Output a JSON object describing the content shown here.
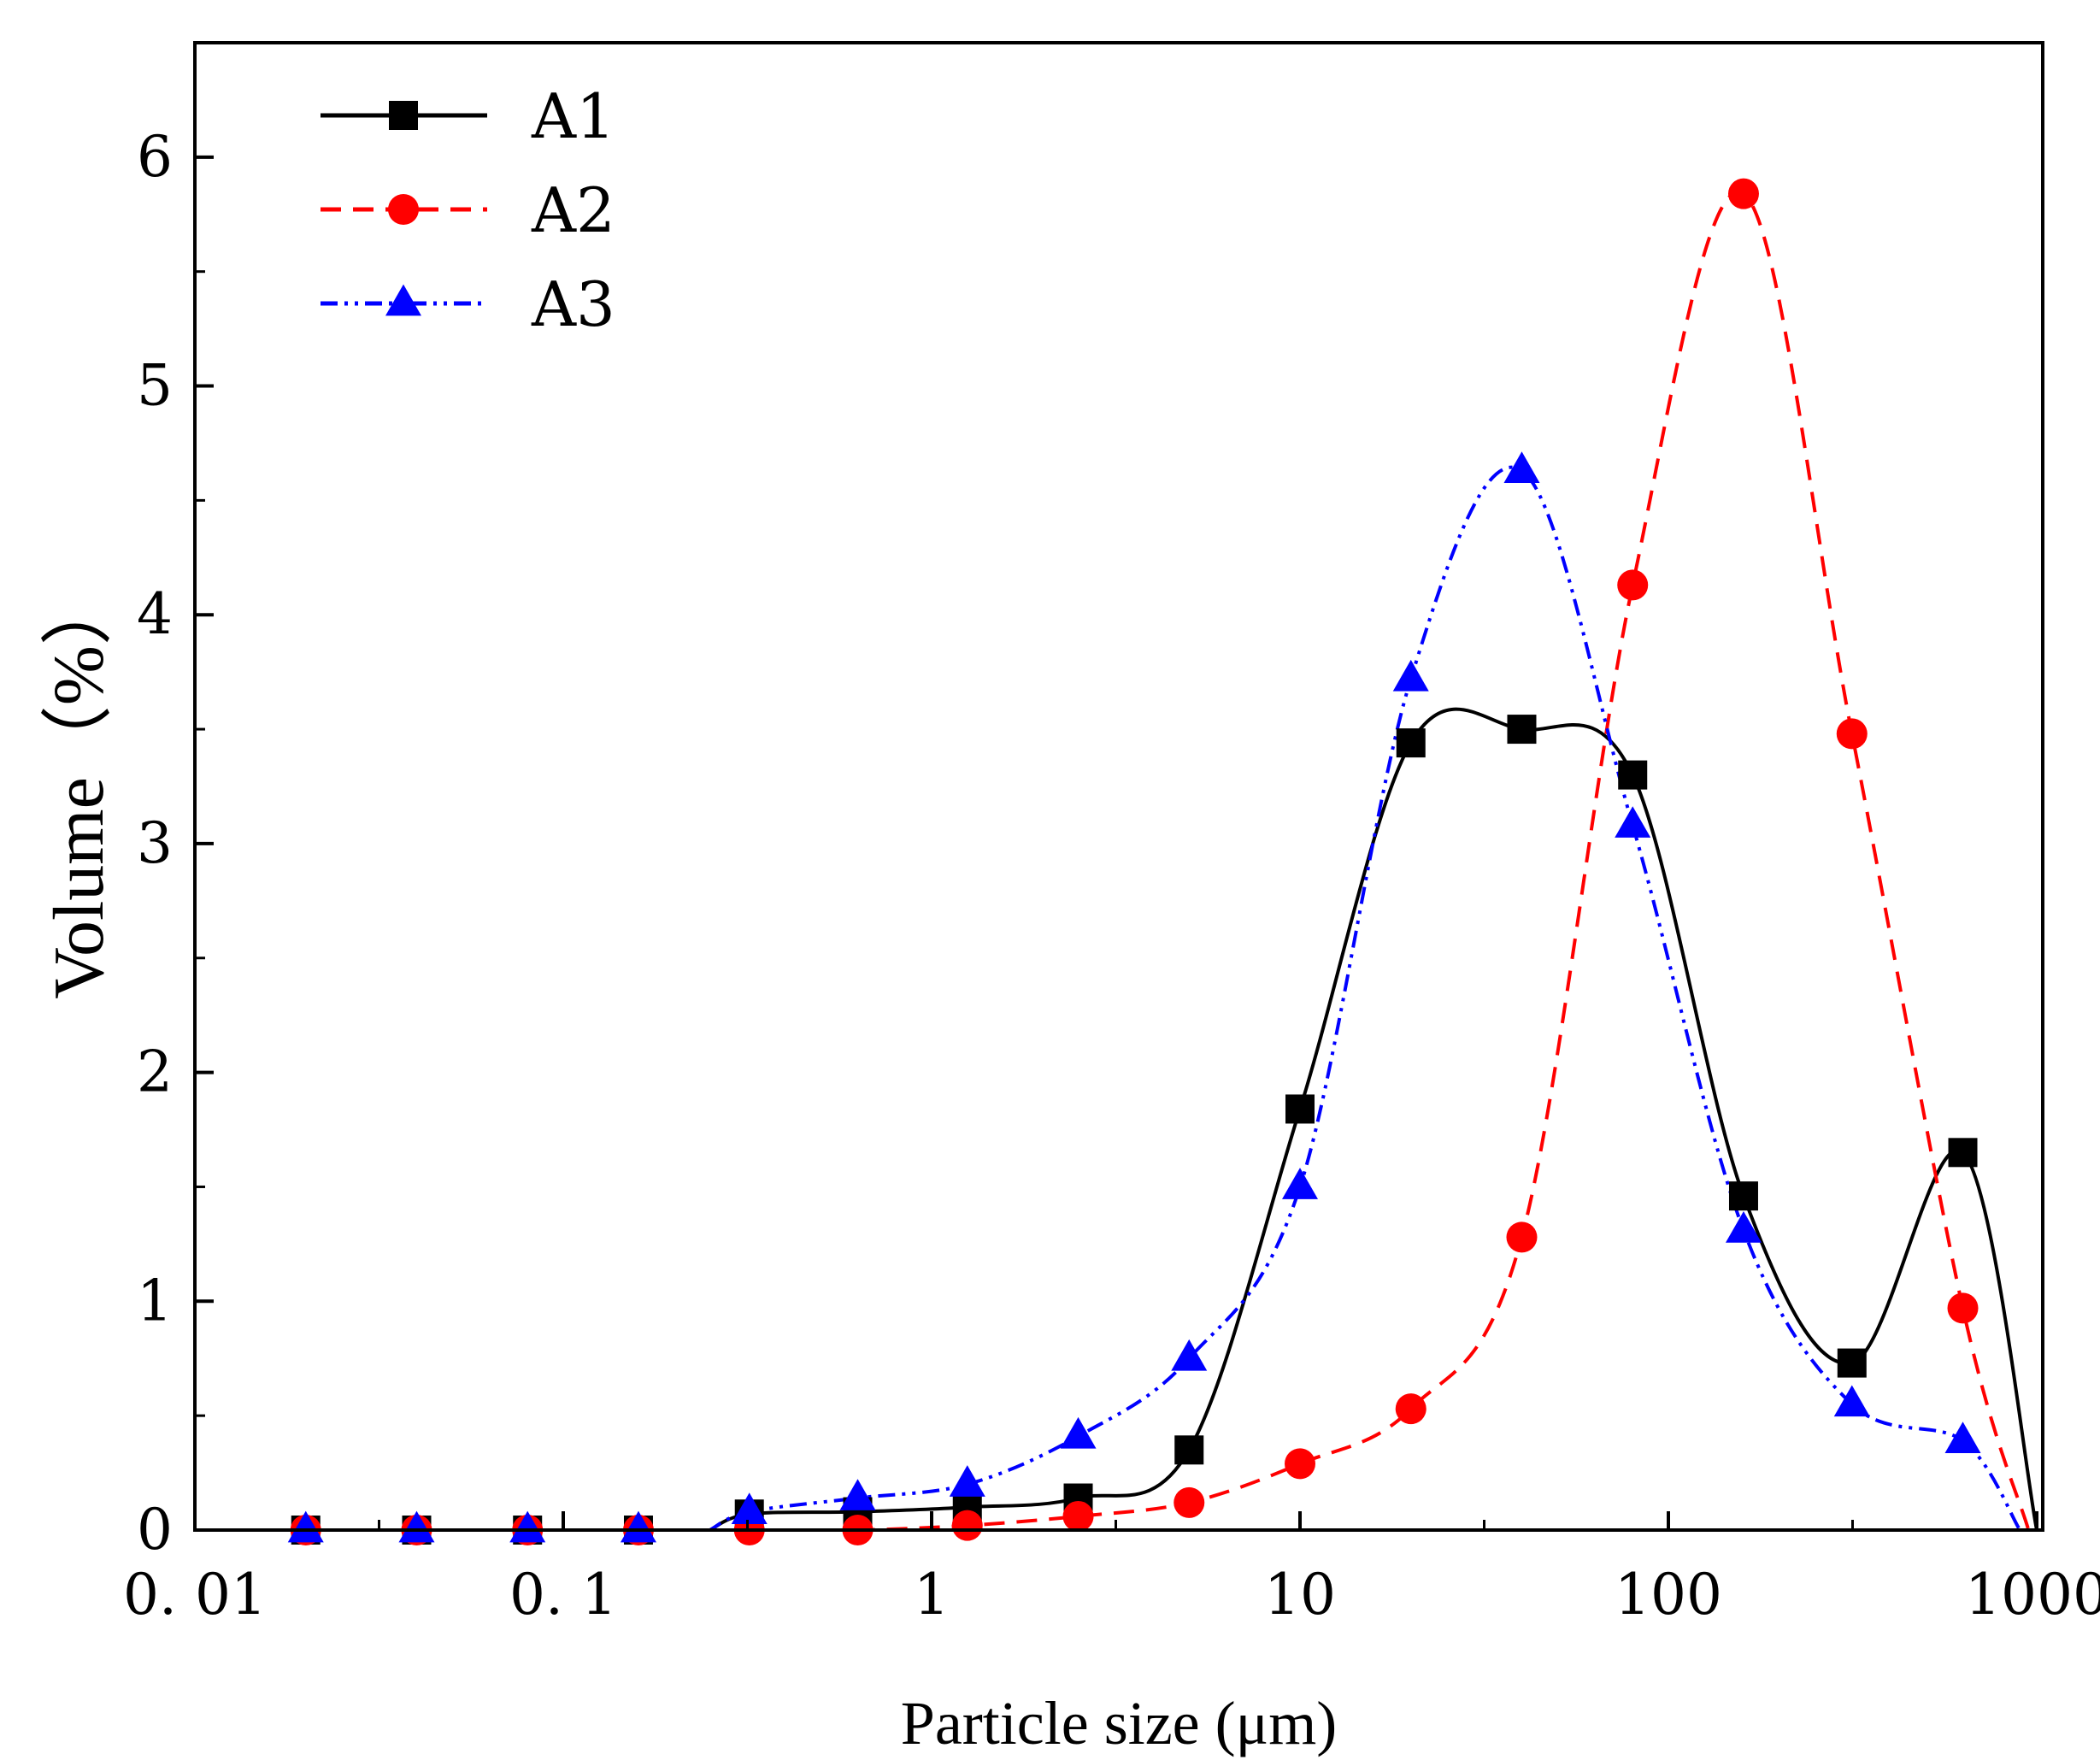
{
  "chart_data": {
    "type": "line",
    "title": "",
    "xlabel": "Particle size (μm)",
    "ylabel": "Volume（%）",
    "x_scale": "log",
    "xlim": [
      0.01,
      1200
    ],
    "ylim": [
      0,
      6.5
    ],
    "x_ticks": [
      {
        "value": 0.01,
        "label": "0. 01"
      },
      {
        "value": 0.1,
        "label": "0. 1"
      },
      {
        "value": 1,
        "label": "1"
      },
      {
        "value": 10,
        "label": "10"
      },
      {
        "value": 100,
        "label": "100"
      },
      {
        "value": 1000,
        "label": "1000"
      }
    ],
    "y_ticks": [
      {
        "value": 0,
        "label": "0"
      },
      {
        "value": 1,
        "label": "1"
      },
      {
        "value": 2,
        "label": "2"
      },
      {
        "value": 3,
        "label": "3"
      },
      {
        "value": 4,
        "label": "4"
      },
      {
        "value": 5,
        "label": "5"
      },
      {
        "value": 6,
        "label": "6"
      }
    ],
    "legend_position": "top-left",
    "series": [
      {
        "name": "A1",
        "color": "#000000",
        "marker": "square",
        "line_style": "solid",
        "x": [
          0.02,
          0.04,
          0.08,
          0.16,
          0.32,
          0.63,
          1.25,
          2.5,
          5,
          10,
          20,
          40,
          80,
          160,
          315,
          630
        ],
        "y": [
          0,
          0,
          0,
          0,
          0.07,
          0.08,
          0.1,
          0.14,
          0.35,
          1.84,
          3.44,
          3.5,
          3.3,
          1.46,
          0.73,
          1.65
        ],
        "curve_start": [
          0.25,
          0
        ],
        "curve_end": [
          1000,
          0
        ]
      },
      {
        "name": "A2",
        "color": "#ff0000",
        "marker": "circle",
        "line_style": "dashed",
        "x": [
          0.02,
          0.04,
          0.08,
          0.16,
          0.32,
          0.63,
          1.25,
          2.5,
          5,
          10,
          20,
          40,
          80,
          160,
          315,
          630
        ],
        "y": [
          0,
          0,
          0,
          0,
          0,
          0,
          0.02,
          0.06,
          0.12,
          0.29,
          0.53,
          1.28,
          4.13,
          5.84,
          3.48,
          0.97
        ],
        "curve_start": [
          0.3,
          0
        ],
        "curve_end": [
          950,
          0
        ]
      },
      {
        "name": "A3",
        "color": "#0000ff",
        "marker": "triangle",
        "line_style": "dash-dot-dot",
        "x": [
          0.02,
          0.04,
          0.08,
          0.16,
          0.32,
          0.63,
          1.25,
          2.5,
          5,
          10,
          20,
          40,
          80,
          160,
          315,
          630
        ],
        "y": [
          0,
          0,
          0,
          0,
          0.08,
          0.14,
          0.2,
          0.41,
          0.75,
          1.5,
          3.72,
          4.63,
          3.08,
          1.31,
          0.55,
          0.39
        ],
        "curve_start": [
          0.25,
          0
        ],
        "curve_end": [
          900,
          0
        ]
      }
    ]
  }
}
